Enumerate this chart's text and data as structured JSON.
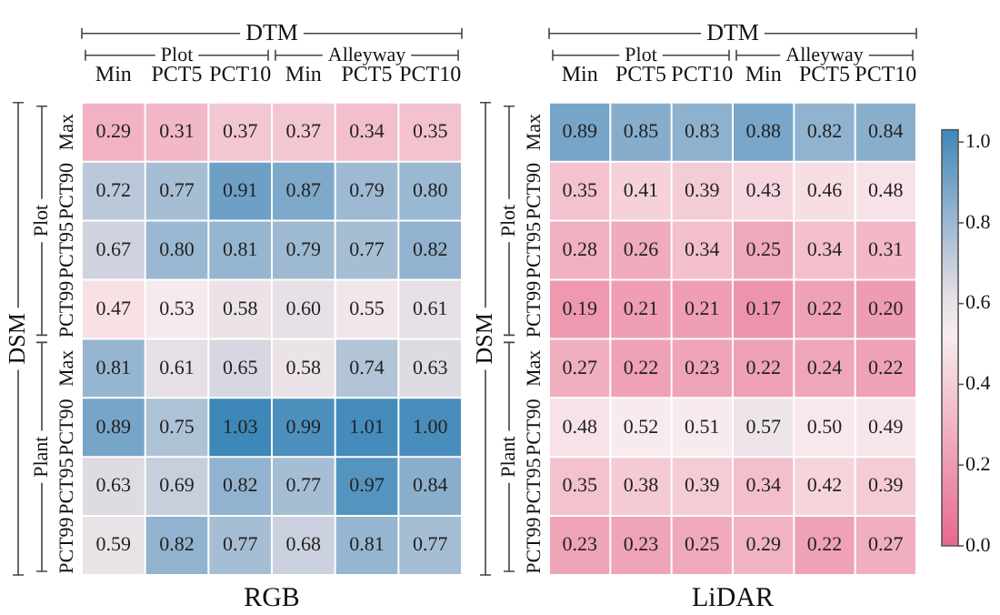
{
  "chart_data": [
    {
      "type": "heatmap",
      "title": "RGB",
      "xlabel": "DTM",
      "ylabel": "DSM",
      "categories": [
        "Min",
        "PCT5",
        "PCT10",
        "Min",
        "PCT5",
        "PCT10"
      ],
      "y_categories": [
        "Max",
        "PCT90",
        "PCT95",
        "PCT99",
        "Max",
        "PCT90",
        "PCT95",
        "PCT99"
      ],
      "cells": [
        [
          0.29,
          0.31,
          0.37,
          0.37,
          0.34,
          0.35
        ],
        [
          0.72,
          0.77,
          0.91,
          0.87,
          0.79,
          0.8
        ],
        [
          0.67,
          0.8,
          0.81,
          0.79,
          0.77,
          0.82
        ],
        [
          0.47,
          0.53,
          0.58,
          0.6,
          0.55,
          0.61
        ],
        [
          0.81,
          0.61,
          0.65,
          0.58,
          0.74,
          0.63
        ],
        [
          0.89,
          0.75,
          1.03,
          0.99,
          1.01,
          1.0
        ],
        [
          0.63,
          0.69,
          0.82,
          0.77,
          0.97,
          0.84
        ],
        [
          0.59,
          0.82,
          0.77,
          0.68,
          0.81,
          0.77
        ]
      ],
      "cell_labels": [
        [
          "0.29",
          "0.31",
          "0.37",
          "0.37",
          "0.34",
          "0.35"
        ],
        [
          "0.72",
          "0.77",
          "0.91",
          "0.87",
          "0.79",
          "0.80"
        ],
        [
          "0.67",
          "0.80",
          "0.81",
          "0.79",
          "0.77",
          "0.82"
        ],
        [
          "0.47",
          "0.53",
          "0.58",
          "0.60",
          "0.55",
          "0.61"
        ],
        [
          "0.81",
          "0.61",
          "0.65",
          "0.58",
          "0.74",
          "0.63"
        ],
        [
          "0.89",
          "0.75",
          "1.03",
          "0.99",
          "1.01",
          "1.00"
        ],
        [
          "0.63",
          "0.69",
          "0.82",
          "0.77",
          "0.97",
          "0.84"
        ],
        [
          "0.59",
          "0.82",
          "0.77",
          "0.68",
          "0.81",
          "0.77"
        ]
      ],
      "annotations": [
        "Plot",
        "Alleyway",
        "Plot",
        "Plant"
      ]
    },
    {
      "type": "heatmap",
      "title": "LiDAR",
      "xlabel": "DTM",
      "ylabel": "DSM",
      "categories": [
        "Min",
        "PCT5",
        "PCT10",
        "Min",
        "PCT5",
        "PCT10"
      ],
      "y_categories": [
        "Max",
        "PCT90",
        "PCT95",
        "PCT99",
        "Max",
        "PCT90",
        "PCT95",
        "PCT99"
      ],
      "cells": [
        [
          0.89,
          0.85,
          0.83,
          0.88,
          0.82,
          0.84
        ],
        [
          0.35,
          0.41,
          0.39,
          0.43,
          0.46,
          0.48
        ],
        [
          0.28,
          0.26,
          0.34,
          0.25,
          0.34,
          0.31
        ],
        [
          0.19,
          0.21,
          0.21,
          0.17,
          0.22,
          0.2
        ],
        [
          0.27,
          0.22,
          0.23,
          0.22,
          0.24,
          0.22
        ],
        [
          0.48,
          0.52,
          0.51,
          0.57,
          0.5,
          0.49
        ],
        [
          0.35,
          0.38,
          0.39,
          0.34,
          0.42,
          0.39
        ],
        [
          0.23,
          0.23,
          0.25,
          0.29,
          0.22,
          0.27
        ]
      ],
      "cell_labels": [
        [
          "0.89",
          "0.85",
          "0.83",
          "0.88",
          "0.82",
          "0.84"
        ],
        [
          "0.35",
          "0.41",
          "0.39",
          "0.43",
          "0.46",
          "0.48"
        ],
        [
          "0.28",
          "0.26",
          "0.34",
          "0.25",
          "0.34",
          "0.31"
        ],
        [
          "0.19",
          "0.21",
          "0.21",
          "0.17",
          "0.22",
          "0.20"
        ],
        [
          "0.27",
          "0.22",
          "0.23",
          "0.22",
          "0.24",
          "0.22"
        ],
        [
          "0.48",
          "0.52",
          "0.51",
          "0.57",
          "0.50",
          "0.49"
        ],
        [
          "0.35",
          "0.38",
          "0.39",
          "0.34",
          "0.42",
          "0.39"
        ],
        [
          "0.23",
          "0.23",
          "0.25",
          "0.29",
          "0.22",
          "0.27"
        ]
      ],
      "clim": [
        0,
        1.03
      ],
      "cticks": [
        {
          "value": 0,
          "label": "0.0"
        },
        {
          "value": 0.2,
          "label": "0.2"
        },
        {
          "value": 0.4,
          "label": "0.4"
        },
        {
          "value": 0.6,
          "label": "0.6"
        },
        {
          "value": 0.8,
          "label": "0.8"
        },
        {
          "value": 1.0,
          "label": "1.0"
        }
      ],
      "annotations": [
        "Plot",
        "Alleyway",
        "Plot",
        "Plant"
      ]
    }
  ]
}
